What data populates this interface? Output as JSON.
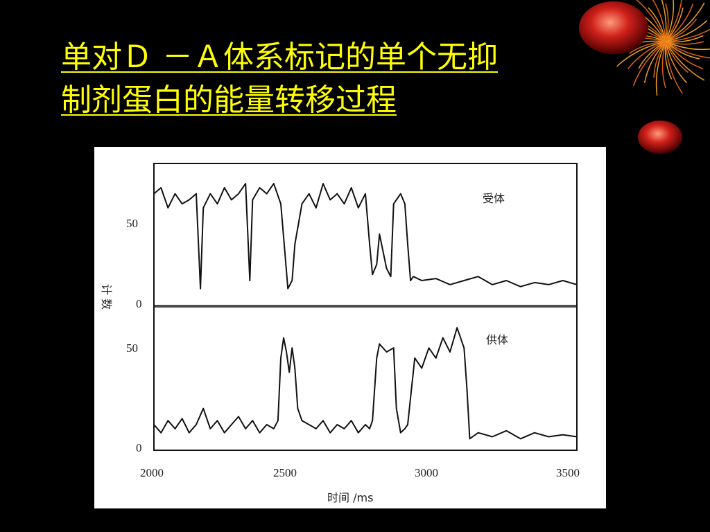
{
  "slide": {
    "title_line1": "单对Ｄ －Ａ体系标记的单个无抑",
    "title_line2": "制剂蛋白的能量转移过程"
  },
  "chart_data": [
    {
      "type": "line",
      "panel": "top",
      "label": "受体",
      "ylabel": "计 数",
      "xlabel": "时间 /ms",
      "xlim": [
        2000,
        3500
      ],
      "ylim": [
        0,
        70
      ],
      "y_ticks": [
        "0",
        "50"
      ],
      "x": [
        2000,
        2025,
        2050,
        2075,
        2100,
        2125,
        2150,
        2165,
        2175,
        2200,
        2225,
        2250,
        2275,
        2300,
        2325,
        2340,
        2350,
        2375,
        2400,
        2425,
        2450,
        2465,
        2475,
        2490,
        2500,
        2525,
        2550,
        2575,
        2600,
        2625,
        2650,
        2675,
        2700,
        2725,
        2750,
        2765,
        2775,
        2790,
        2800,
        2825,
        2840,
        2850,
        2860,
        2875,
        2890,
        2900,
        2910,
        2920,
        2950,
        3000,
        3050,
        3100,
        3150,
        3200,
        3250,
        3300,
        3350,
        3400,
        3450,
        3500
      ],
      "values": [
        55,
        58,
        48,
        55,
        50,
        52,
        55,
        8,
        48,
        55,
        50,
        58,
        52,
        55,
        60,
        12,
        52,
        58,
        55,
        60,
        50,
        25,
        8,
        12,
        30,
        50,
        55,
        48,
        60,
        52,
        55,
        50,
        58,
        48,
        55,
        30,
        15,
        20,
        35,
        18,
        14,
        50,
        52,
        55,
        50,
        30,
        12,
        14,
        12,
        13,
        10,
        12,
        14,
        10,
        12,
        9,
        11,
        10,
        12,
        10
      ]
    },
    {
      "type": "line",
      "panel": "bottom",
      "label": "供体",
      "xlim": [
        2000,
        3500
      ],
      "ylim": [
        0,
        70
      ],
      "y_ticks": [
        "0",
        "50"
      ],
      "x_ticks": [
        "2000",
        "2500",
        "3000",
        "3500"
      ],
      "x": [
        2000,
        2025,
        2050,
        2075,
        2100,
        2125,
        2150,
        2175,
        2200,
        2225,
        2250,
        2275,
        2300,
        2325,
        2350,
        2375,
        2400,
        2425,
        2440,
        2450,
        2460,
        2470,
        2480,
        2490,
        2500,
        2510,
        2525,
        2550,
        2575,
        2600,
        2625,
        2650,
        2675,
        2700,
        2725,
        2750,
        2765,
        2775,
        2790,
        2800,
        2825,
        2850,
        2860,
        2875,
        2890,
        2900,
        2925,
        2950,
        2975,
        3000,
        3025,
        3050,
        3075,
        3100,
        3110,
        3120,
        3150,
        3200,
        3250,
        3300,
        3350,
        3400,
        3450,
        3500
      ],
      "values": [
        12,
        8,
        14,
        10,
        15,
        8,
        12,
        20,
        10,
        14,
        8,
        12,
        16,
        10,
        14,
        8,
        12,
        10,
        14,
        45,
        55,
        48,
        38,
        50,
        40,
        20,
        14,
        12,
        10,
        14,
        8,
        12,
        10,
        14,
        8,
        12,
        10,
        14,
        45,
        52,
        48,
        50,
        20,
        8,
        10,
        12,
        45,
        40,
        50,
        45,
        55,
        48,
        60,
        50,
        30,
        5,
        8,
        6,
        9,
        5,
        8,
        6,
        7,
        6
      ]
    }
  ]
}
